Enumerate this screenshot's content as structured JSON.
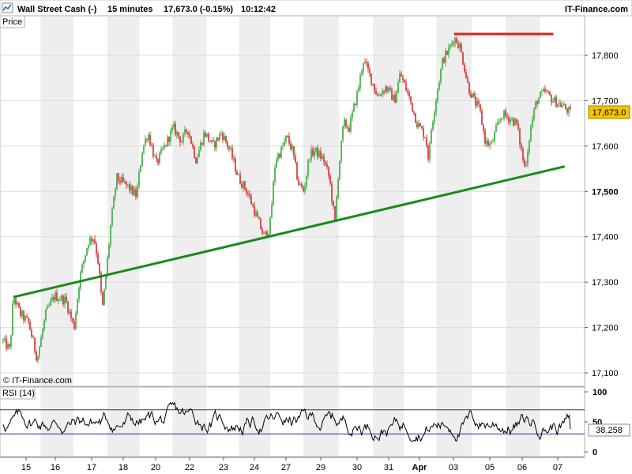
{
  "header": {
    "instrument": "Wall Street Cash (-)",
    "timeframe": "15 minutes",
    "quote": "17,673.0 (-0.15%)",
    "time": "10:12:42",
    "brand": "IT-Finance.com"
  },
  "price_panel": {
    "label": "Price",
    "watermark": "© IT-Finance.com",
    "last_price_label": "17,673.0",
    "last_price_bg": "#f5c400"
  },
  "rsi_panel": {
    "label": "RSI (14)",
    "last_value_label": "38.258"
  },
  "colors": {
    "up_candle": "#4caf50",
    "down_candle": "#d84040",
    "trendline": "#1a8a1a",
    "resistance": "#e02020",
    "rsi_line": "#000000",
    "rsi_bands": "#2a2aa0",
    "shade": "#eeeeee"
  },
  "chart_data": [
    {
      "type": "candlestick",
      "title": "Wall Street Cash (-)",
      "ylim": [
        17080,
        17880
      ],
      "yticks": [
        17100,
        17200,
        17300,
        17400,
        17500,
        17600,
        17700,
        17800
      ],
      "ytick_labels": [
        "17,100",
        "17,200",
        "17,300",
        "17,400",
        "17,500",
        "17,600",
        "17,700",
        "17,800"
      ],
      "emphasized_tick": 17500,
      "last_price": 17673.0,
      "xtick_labels": [
        "15",
        "16",
        "17",
        "18",
        "20",
        "22",
        "23",
        "24",
        "27",
        "29",
        "30",
        "31",
        "Apr",
        "03",
        "05",
        "06",
        "07"
      ],
      "path": [
        [
          0,
          17170
        ],
        [
          0.012,
          17150
        ],
        [
          0.018,
          17270
        ],
        [
          0.03,
          17230
        ],
        [
          0.045,
          17210
        ],
        [
          0.06,
          17130
        ],
        [
          0.075,
          17230
        ],
        [
          0.09,
          17270
        ],
        [
          0.11,
          17260
        ],
        [
          0.125,
          17200
        ],
        [
          0.135,
          17310
        ],
        [
          0.15,
          17390
        ],
        [
          0.16,
          17400
        ],
        [
          0.168,
          17340
        ],
        [
          0.175,
          17240
        ],
        [
          0.18,
          17300
        ],
        [
          0.19,
          17430
        ],
        [
          0.2,
          17530
        ],
        [
          0.21,
          17520
        ],
        [
          0.22,
          17510
        ],
        [
          0.235,
          17490
        ],
        [
          0.245,
          17590
        ],
        [
          0.255,
          17630
        ],
        [
          0.27,
          17560
        ],
        [
          0.285,
          17600
        ],
        [
          0.3,
          17640
        ],
        [
          0.315,
          17610
        ],
        [
          0.325,
          17640
        ],
        [
          0.34,
          17570
        ],
        [
          0.355,
          17630
        ],
        [
          0.37,
          17600
        ],
        [
          0.385,
          17630
        ],
        [
          0.4,
          17590
        ],
        [
          0.415,
          17530
        ],
        [
          0.43,
          17500
        ],
        [
          0.445,
          17450
        ],
        [
          0.46,
          17400
        ],
        [
          0.47,
          17420
        ],
        [
          0.48,
          17570
        ],
        [
          0.49,
          17590
        ],
        [
          0.5,
          17620
        ],
        [
          0.51,
          17590
        ],
        [
          0.52,
          17520
        ],
        [
          0.53,
          17500
        ],
        [
          0.54,
          17580
        ],
        [
          0.55,
          17590
        ],
        [
          0.565,
          17570
        ],
        [
          0.575,
          17530
        ],
        [
          0.58,
          17480
        ],
        [
          0.585,
          17430
        ],
        [
          0.59,
          17530
        ],
        [
          0.6,
          17650
        ],
        [
          0.61,
          17640
        ],
        [
          0.625,
          17720
        ],
        [
          0.635,
          17790
        ],
        [
          0.645,
          17760
        ],
        [
          0.66,
          17710
        ],
        [
          0.675,
          17730
        ],
        [
          0.69,
          17700
        ],
        [
          0.7,
          17760
        ],
        [
          0.715,
          17710
        ],
        [
          0.73,
          17650
        ],
        [
          0.745,
          17620
        ],
        [
          0.75,
          17570
        ],
        [
          0.755,
          17640
        ],
        [
          0.765,
          17720
        ],
        [
          0.775,
          17790
        ],
        [
          0.785,
          17810
        ],
        [
          0.795,
          17840
        ],
        [
          0.805,
          17820
        ],
        [
          0.812,
          17780
        ],
        [
          0.82,
          17730
        ],
        [
          0.83,
          17700
        ],
        [
          0.84,
          17680
        ],
        [
          0.85,
          17610
        ],
        [
          0.86,
          17600
        ],
        [
          0.87,
          17640
        ],
        [
          0.88,
          17670
        ],
        [
          0.895,
          17660
        ],
        [
          0.905,
          17650
        ],
        [
          0.915,
          17580
        ],
        [
          0.92,
          17550
        ],
        [
          0.93,
          17640
        ],
        [
          0.94,
          17700
        ],
        [
          0.955,
          17720
        ],
        [
          0.97,
          17700
        ],
        [
          0.985,
          17690
        ],
        [
          1,
          17673
        ]
      ],
      "trendline": [
        [
          0.018,
          17267
        ],
        [
          0.99,
          17555
        ]
      ],
      "resistance": [
        [
          0.795,
          17847
        ],
        [
          0.97,
          17847
        ]
      ]
    },
    {
      "type": "line",
      "title": "RSI (14)",
      "ylim": [
        0,
        100
      ],
      "yticks": [
        0,
        50,
        100
      ],
      "ytick_labels": [
        "0",
        "50",
        "100"
      ],
      "bands": [
        30,
        70
      ],
      "last_value": 38.258
    }
  ]
}
